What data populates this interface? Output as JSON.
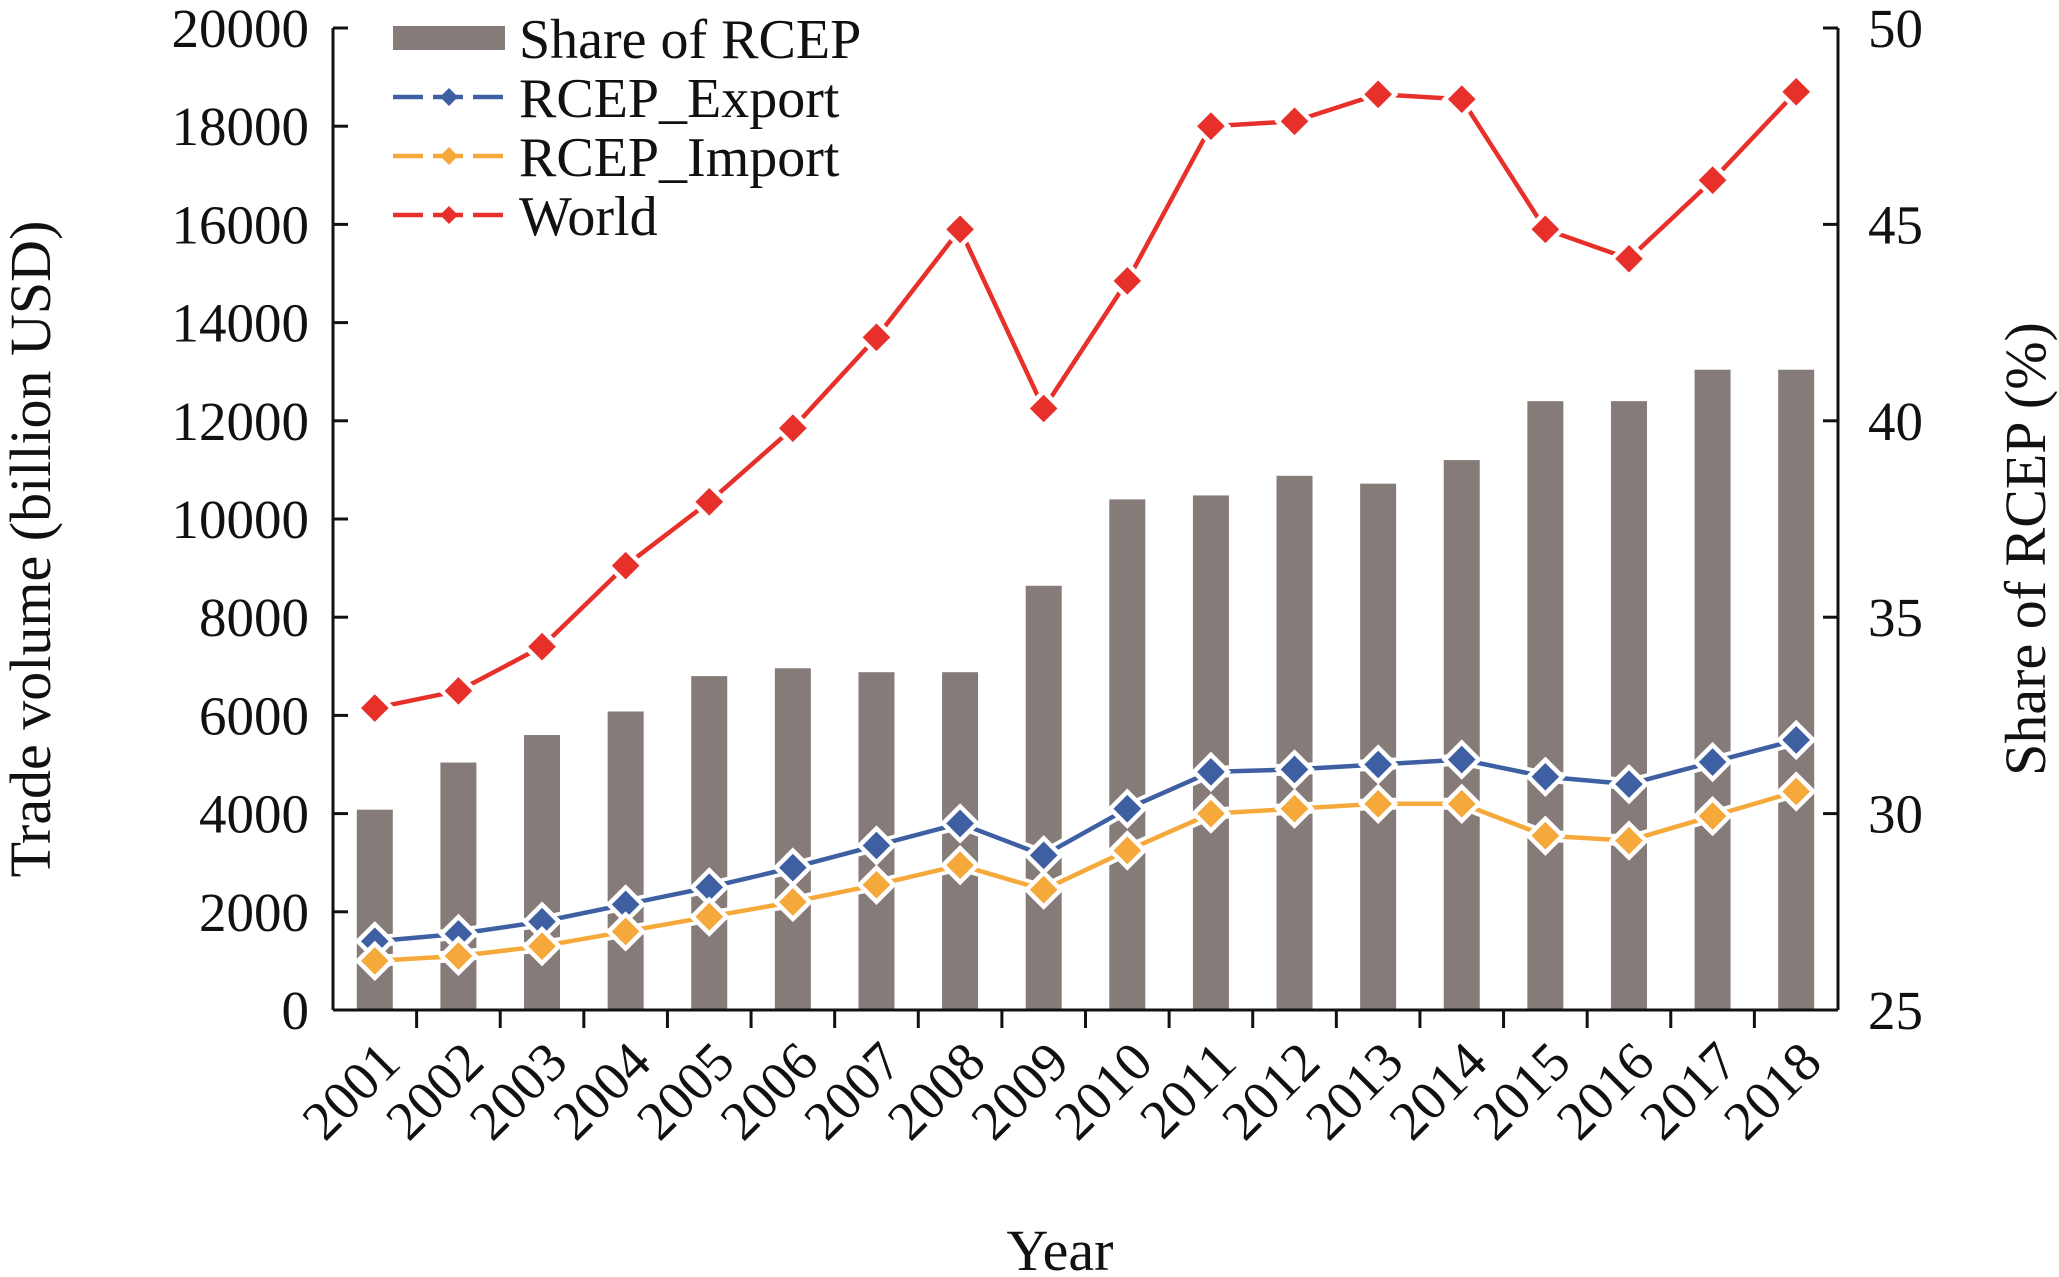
{
  "chart_data": {
    "type": "bar+line",
    "title": "",
    "xlabel": "Year",
    "ylabel_left": "Trade volume (billion USD)",
    "ylabel_right": "Share of RCEP (%)",
    "ylim_left": [
      0,
      20000
    ],
    "ylim_right": [
      25,
      50
    ],
    "yticks_left": [
      "0",
      "2000",
      "4000",
      "6000",
      "8000",
      "10000",
      "12000",
      "14000",
      "16000",
      "18000",
      "20000"
    ],
    "yticks_right": [
      "25",
      "30",
      "35",
      "40",
      "45",
      "50"
    ],
    "grid": false,
    "legend_position": "top-left",
    "categories": [
      "2001",
      "2002",
      "2003",
      "2004",
      "2005",
      "2006",
      "2007",
      "2008",
      "2009",
      "2010",
      "2011",
      "2012",
      "2013",
      "2014",
      "2015",
      "2016",
      "2017",
      "2018"
    ],
    "bars": {
      "name": "Share of RCEP",
      "axis": "right",
      "color": "#857b78",
      "values": [
        30.1,
        31.3,
        32.0,
        32.6,
        33.5,
        33.7,
        33.6,
        33.6,
        35.8,
        38.0,
        38.1,
        38.6,
        38.4,
        39.0,
        40.5,
        40.5,
        41.3,
        41.3
      ]
    },
    "series": [
      {
        "name": "RCEP_Export",
        "axis": "left",
        "color": "#3f5fa3",
        "values": [
          1400,
          1550,
          1800,
          2150,
          2500,
          2900,
          3350,
          3800,
          3150,
          4100,
          4850,
          4900,
          5000,
          5100,
          4750,
          4600,
          5050,
          5500
        ]
      },
      {
        "name": "RCEP_Import",
        "axis": "left",
        "color": "#f5a93a",
        "values": [
          1000,
          1100,
          1300,
          1600,
          1900,
          2200,
          2550,
          2950,
          2450,
          3250,
          4000,
          4100,
          4200,
          4200,
          3550,
          3450,
          3950,
          4450
        ]
      },
      {
        "name": "World",
        "axis": "left",
        "color": "#e8302b",
        "values": [
          6150,
          6500,
          7400,
          9050,
          10350,
          11850,
          13700,
          15900,
          12250,
          14850,
          18000,
          18100,
          18650,
          18550,
          15900,
          15300,
          16900,
          18700
        ]
      }
    ]
  }
}
